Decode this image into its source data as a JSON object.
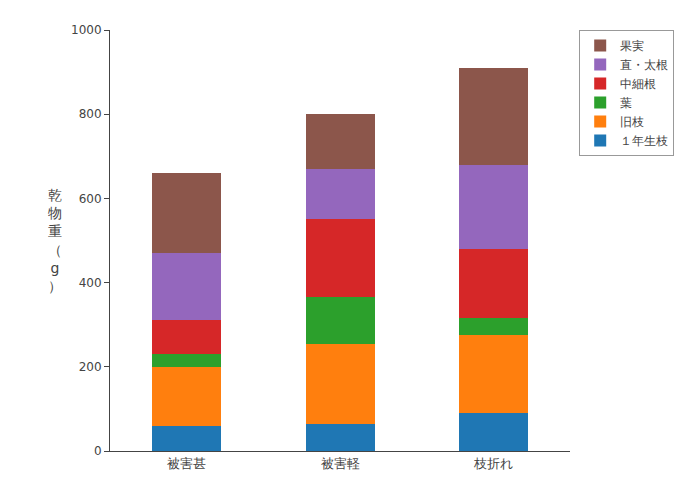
{
  "chart_data": {
    "type": "bar",
    "stacked": true,
    "ylabel": "乾物重（g）",
    "categories": [
      "被害甚",
      "被害軽",
      "枝折れ"
    ],
    "series": [
      {
        "name": "１年生枝",
        "values": [
          60,
          65,
          90
        ]
      },
      {
        "name": "旧枝",
        "values": [
          140,
          190,
          185
        ]
      },
      {
        "name": "葉",
        "values": [
          30,
          110,
          40
        ]
      },
      {
        "name": "中細根",
        "values": [
          80,
          185,
          165
        ]
      },
      {
        "name": "直・太根",
        "values": [
          160,
          120,
          200
        ]
      },
      {
        "name": "果実",
        "values": [
          190,
          130,
          230
        ]
      }
    ],
    "ylim": [
      0,
      1000
    ],
    "yticks": [
      0,
      200,
      400,
      600,
      800,
      1000
    ],
    "grid": false,
    "legend": "upper right"
  }
}
